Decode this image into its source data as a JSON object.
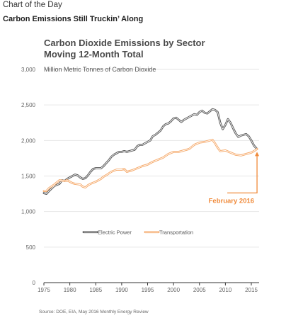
{
  "page": {
    "kicker": "Chart of the Day",
    "headline": "Carbon Emissions Still Truckin’ Along",
    "source": "Source: DOE, EIA, May 2016 Monthly Energy Review"
  },
  "chart_data": {
    "type": "line",
    "title": [
      "Carbon Dioxide Emissions by Sector",
      "Moving 12-Month Total"
    ],
    "ylabel": "Million Metric Tonnes of Carbon Dioxide",
    "xlabel": "",
    "xlim": [
      1975,
      2016.5
    ],
    "ylim": [
      0,
      3000
    ],
    "x_ticks": [
      1975,
      1980,
      1985,
      1990,
      1995,
      2000,
      2005,
      2010,
      2015
    ],
    "y_ticks": [
      0,
      500,
      1000,
      1500,
      2000,
      2500,
      3000
    ],
    "y_tick_labels": [
      "0",
      "500",
      "1,000",
      "1,500",
      "2,000",
      "2,500",
      "3,000"
    ],
    "grid": true,
    "legend_position": "center",
    "annotation": {
      "text": "February 2016",
      "x": 2016.1,
      "y": 1880
    },
    "series": [
      {
        "name": "Electric Power",
        "color": "#555555",
        "style": "double-line",
        "points": [
          [
            1975,
            1260
          ],
          [
            1975.5,
            1250
          ],
          [
            1976,
            1290
          ],
          [
            1977,
            1360
          ],
          [
            1978,
            1390
          ],
          [
            1978.5,
            1440
          ],
          [
            1979,
            1430
          ],
          [
            1979.5,
            1460
          ],
          [
            1980,
            1480
          ],
          [
            1980.5,
            1500
          ],
          [
            1981,
            1520
          ],
          [
            1981.5,
            1510
          ],
          [
            1982,
            1480
          ],
          [
            1982.5,
            1460
          ],
          [
            1983,
            1470
          ],
          [
            1983.5,
            1510
          ],
          [
            1984,
            1560
          ],
          [
            1984.5,
            1600
          ],
          [
            1985,
            1610
          ],
          [
            1986,
            1610
          ],
          [
            1986.5,
            1640
          ],
          [
            1987,
            1680
          ],
          [
            1987.5,
            1720
          ],
          [
            1988,
            1770
          ],
          [
            1988.5,
            1800
          ],
          [
            1989,
            1820
          ],
          [
            1989.5,
            1840
          ],
          [
            1990,
            1840
          ],
          [
            1990.5,
            1850
          ],
          [
            1991,
            1840
          ],
          [
            1991.5,
            1850
          ],
          [
            1992,
            1860
          ],
          [
            1992.5,
            1870
          ],
          [
            1993,
            1920
          ],
          [
            1993.5,
            1940
          ],
          [
            1994,
            1940
          ],
          [
            1994.5,
            1960
          ],
          [
            1995,
            1980
          ],
          [
            1995.5,
            2000
          ],
          [
            1996,
            2060
          ],
          [
            1996.5,
            2080
          ],
          [
            1997,
            2110
          ],
          [
            1997.5,
            2140
          ],
          [
            1998,
            2200
          ],
          [
            1998.5,
            2230
          ],
          [
            1999,
            2240
          ],
          [
            1999.5,
            2270
          ],
          [
            2000,
            2310
          ],
          [
            2000.5,
            2320
          ],
          [
            2001,
            2290
          ],
          [
            2001.5,
            2260
          ],
          [
            2002,
            2290
          ],
          [
            2002.5,
            2310
          ],
          [
            2003,
            2330
          ],
          [
            2003.5,
            2350
          ],
          [
            2004,
            2370
          ],
          [
            2004.5,
            2360
          ],
          [
            2005,
            2400
          ],
          [
            2005.5,
            2420
          ],
          [
            2006,
            2390
          ],
          [
            2006.5,
            2380
          ],
          [
            2007,
            2410
          ],
          [
            2007.5,
            2440
          ],
          [
            2008,
            2430
          ],
          [
            2008.5,
            2400
          ],
          [
            2009,
            2250
          ],
          [
            2009.5,
            2160
          ],
          [
            2010,
            2220
          ],
          [
            2010.5,
            2300
          ],
          [
            2011,
            2250
          ],
          [
            2011.5,
            2170
          ],
          [
            2012,
            2100
          ],
          [
            2012.5,
            2050
          ],
          [
            2013,
            2070
          ],
          [
            2013.5,
            2080
          ],
          [
            2014,
            2090
          ],
          [
            2014.5,
            2060
          ],
          [
            2015,
            2000
          ],
          [
            2015.5,
            1930
          ],
          [
            2016.1,
            1880
          ]
        ]
      },
      {
        "name": "Transportation",
        "color": "#f5a96a",
        "style": "double-line",
        "points": [
          [
            1975,
            1290
          ],
          [
            1975.5,
            1290
          ],
          [
            1976,
            1330
          ],
          [
            1977,
            1380
          ],
          [
            1978,
            1440
          ],
          [
            1979,
            1430
          ],
          [
            1979.5,
            1440
          ],
          [
            1980,
            1420
          ],
          [
            1980.5,
            1400
          ],
          [
            1981,
            1390
          ],
          [
            1982,
            1380
          ],
          [
            1982.5,
            1350
          ],
          [
            1983,
            1340
          ],
          [
            1983.5,
            1370
          ],
          [
            1984,
            1390
          ],
          [
            1985,
            1420
          ],
          [
            1986,
            1460
          ],
          [
            1986.5,
            1490
          ],
          [
            1987,
            1510
          ],
          [
            1988,
            1560
          ],
          [
            1989,
            1590
          ],
          [
            1990,
            1590
          ],
          [
            1990.5,
            1600
          ],
          [
            1991,
            1560
          ],
          [
            1992,
            1580
          ],
          [
            1993,
            1610
          ],
          [
            1994,
            1640
          ],
          [
            1995,
            1660
          ],
          [
            1996,
            1700
          ],
          [
            1997,
            1730
          ],
          [
            1998,
            1760
          ],
          [
            1999,
            1810
          ],
          [
            2000,
            1840
          ],
          [
            2001,
            1840
          ],
          [
            2002,
            1860
          ],
          [
            2003,
            1880
          ],
          [
            2004,
            1940
          ],
          [
            2005,
            1970
          ],
          [
            2006,
            1980
          ],
          [
            2007,
            2000
          ],
          [
            2007.5,
            2010
          ],
          [
            2008,
            1960
          ],
          [
            2008.5,
            1900
          ],
          [
            2009,
            1850
          ],
          [
            2010,
            1860
          ],
          [
            2011,
            1830
          ],
          [
            2012,
            1800
          ],
          [
            2013,
            1790
          ],
          [
            2014,
            1810
          ],
          [
            2015,
            1830
          ],
          [
            2015.5,
            1850
          ],
          [
            2016.1,
            1880
          ]
        ]
      }
    ]
  }
}
